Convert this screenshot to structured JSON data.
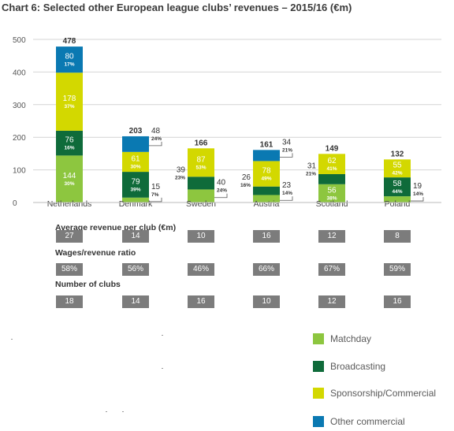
{
  "title": "Chart 6: Selected other European league clubs’ revenues – 2015/16 (€m)",
  "colors": {
    "Matchday": "#8dc63f",
    "Broadcasting": "#0f6b3a",
    "Sponsorship/Commercial": "#d3d800",
    "Other commercial": "#0a79b2",
    "grid": "#d4d4d4",
    "table_cell": "#7c7c7c"
  },
  "chart_data": {
    "type": "bar",
    "stacked": true,
    "categories": [
      "Netherlands",
      "Denmark",
      "Sweden",
      "Austria",
      "Scotland",
      "Poland"
    ],
    "ylim": [
      0,
      500
    ],
    "yticks": [
      "0",
      "100",
      "200",
      "300",
      "400",
      "500"
    ],
    "grid": true,
    "totals": [
      "478",
      "203",
      "166",
      "161",
      "149",
      "132"
    ],
    "series": [
      {
        "name": "Matchday",
        "values": [
          144,
          15,
          40,
          23,
          56,
          19
        ],
        "labels": [
          "144",
          "15",
          "40",
          "23",
          "56",
          "19"
        ],
        "pct": [
          "30%",
          "7%",
          "24%",
          "14%",
          "38%",
          "14%"
        ]
      },
      {
        "name": "Broadcasting",
        "values": [
          76,
          79,
          39,
          26,
          31,
          58
        ],
        "labels": [
          "76",
          "79",
          "39",
          "26",
          "31",
          "58"
        ],
        "pct": [
          "16%",
          "39%",
          "23%",
          "16%",
          "21%",
          "44%"
        ]
      },
      {
        "name": "Sponsorship/Commercial",
        "values": [
          178,
          61,
          87,
          78,
          62,
          55
        ],
        "labels": [
          "178",
          "61",
          "87",
          "78",
          "62",
          "55"
        ],
        "pct": [
          "37%",
          "30%",
          "53%",
          "49%",
          "41%",
          "42%"
        ]
      },
      {
        "name": "Other commercial",
        "values": [
          80,
          48,
          0,
          34,
          0,
          0
        ],
        "labels": [
          "80",
          "48",
          "",
          "34",
          "",
          ""
        ],
        "pct": [
          "17%",
          "24%",
          "",
          "21%",
          "",
          ""
        ]
      }
    ]
  },
  "tables": [
    {
      "label": "Average revenue per club (€m)",
      "values": [
        "27",
        "14",
        "10",
        "16",
        "12",
        "8"
      ]
    },
    {
      "label": "Wages/revenue ratio",
      "values": [
        "58%",
        "56%",
        "46%",
        "66%",
        "67%",
        "59%"
      ]
    },
    {
      "label": "Number of clubs",
      "values": [
        "18",
        "14",
        "16",
        "10",
        "12",
        "16"
      ]
    }
  ],
  "legend": [
    "Matchday",
    "Broadcasting",
    "Sponsorship/Commercial",
    "Other commercial"
  ]
}
